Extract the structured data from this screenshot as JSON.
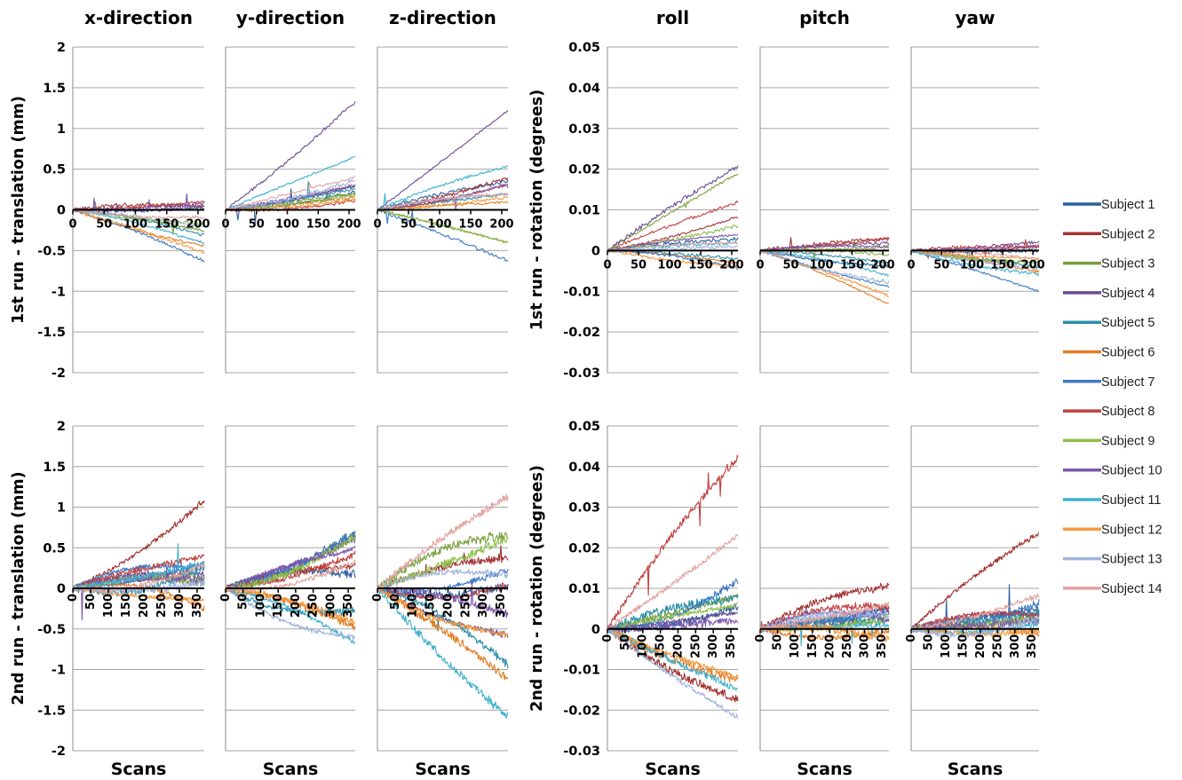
{
  "chart_data": {
    "type": "line",
    "subplot_titles": [
      "x-direction",
      "y-direction",
      "z-direction",
      "roll",
      "pitch",
      "yaw"
    ],
    "row_labels": {
      "translation": [
        "1st run - translation (mm)",
        "2nd run - translation (mm)"
      ],
      "rotation": [
        "1st run - rotation (degrees)",
        "2nd run - rotation (degrees)"
      ]
    },
    "xlabel": "Scans",
    "translation_yticks": [
      "2",
      "1.5",
      "1",
      "0.5",
      "0",
      "-0.5",
      "-1",
      "-1.5",
      "-2"
    ],
    "rotation_yticks": [
      "0.05",
      "0.04",
      "0.03",
      "0.02",
      "0.01",
      "0",
      "-0.01",
      "-0.02",
      "-0.03"
    ],
    "translation_ylim": [
      -2,
      2
    ],
    "rotation_ylim": [
      -0.03,
      0.05
    ],
    "run1_xticks": [
      "0",
      "50",
      "100",
      "150",
      "200"
    ],
    "run2_xticks": [
      "0",
      "50",
      "100",
      "150",
      "200",
      "250",
      "300",
      "350"
    ],
    "run1_xlim": [
      0,
      210
    ],
    "run2_xlim": [
      0,
      370
    ],
    "grid": true,
    "legend_position": "right",
    "series": [
      {
        "name": "Subject 1",
        "color": "#2d5f9e"
      },
      {
        "name": "Subject 2",
        "color": "#a33331"
      },
      {
        "name": "Subject 3",
        "color": "#78a03a"
      },
      {
        "name": "Subject 4",
        "color": "#6a4b93"
      },
      {
        "name": "Subject 5",
        "color": "#2b8ea6"
      },
      {
        "name": "Subject 6",
        "color": "#e07e26"
      },
      {
        "name": "Subject 7",
        "color": "#3c78c6"
      },
      {
        "name": "Subject 8",
        "color": "#c0413f"
      },
      {
        "name": "Subject 9",
        "color": "#8fbe4c"
      },
      {
        "name": "Subject 10",
        "color": "#7d58ad"
      },
      {
        "name": "Subject 11",
        "color": "#3fb0cf"
      },
      {
        "name": "Subject 12",
        "color": "#f59a3e"
      },
      {
        "name": "Subject 13",
        "color": "#9fb3dc"
      },
      {
        "name": "Subject 14",
        "color": "#e0a2a0"
      }
    ],
    "endpoints": {
      "x-direction": {
        "run1": [
          0.02,
          0.05,
          -0.25,
          0.08,
          -0.3,
          -0.45,
          -0.62,
          0.1,
          -0.18,
          0.03,
          -0.4,
          -0.52,
          -0.2,
          -0.1
        ],
        "run2": [
          0.3,
          1.05,
          0.1,
          0.2,
          0.22,
          -0.2,
          0.28,
          0.4,
          0.15,
          0.12,
          0.3,
          -0.15,
          0.05,
          0.25
        ]
      },
      "y-direction": {
        "run1": [
          0.2,
          0.3,
          0.2,
          1.32,
          0.25,
          0.15,
          0.28,
          0.1,
          0.18,
          0.3,
          0.65,
          0.12,
          0.35,
          0.4
        ],
        "run2": [
          0.2,
          0.3,
          0.65,
          0.6,
          -0.3,
          -0.45,
          0.65,
          0.4,
          0.6,
          0.5,
          -0.65,
          -0.4,
          -0.65,
          0.3
        ]
      },
      "z-direction": {
        "run1": [
          0.35,
          0.38,
          -0.4,
          1.22,
          0.2,
          0.1,
          -0.62,
          0.3,
          -0.4,
          0.3,
          0.55,
          0.15,
          0.2,
          0.2
        ],
        "run2": [
          0.0,
          0.4,
          0.7,
          -0.6,
          -0.9,
          -1.1,
          0.2,
          0.0,
          0.6,
          -0.3,
          -1.6,
          -0.6,
          0.2,
          1.15
        ]
      },
      "roll": {
        "run1": [
          0.003,
          0.008,
          0.019,
          0.021,
          -0.002,
          -0.003,
          -0.004,
          0.012,
          0.006,
          0.004,
          0.002,
          -0.004,
          0.001,
          0.002
        ],
        "run2": [
          0.005,
          -0.018,
          0.008,
          0.004,
          0.008,
          -0.013,
          0.011,
          0.043,
          0.006,
          0.002,
          -0.015,
          -0.012,
          -0.022,
          0.023
        ]
      },
      "pitch": {
        "run1": [
          -0.004,
          0.003,
          0.001,
          0.002,
          -0.003,
          -0.013,
          -0.009,
          0.003,
          -0.001,
          0.001,
          -0.006,
          -0.011,
          -0.008,
          0.0
        ],
        "run2": [
          0.005,
          0.011,
          0.003,
          0.004,
          0.002,
          -0.001,
          0.004,
          0.006,
          0.002,
          0.003,
          0.001,
          -0.002,
          0.004,
          0.006
        ]
      },
      "yaw": {
        "run1": [
          0.0,
          0.001,
          -0.003,
          0.002,
          -0.004,
          -0.005,
          -0.01,
          0.001,
          -0.003,
          0.001,
          -0.006,
          -0.002,
          -0.004,
          -0.002
        ],
        "run2": [
          0.005,
          0.024,
          0.003,
          0.004,
          0.004,
          -0.001,
          0.006,
          0.004,
          0.002,
          0.002,
          0.001,
          -0.001,
          0.002,
          0.008
        ]
      }
    }
  }
}
